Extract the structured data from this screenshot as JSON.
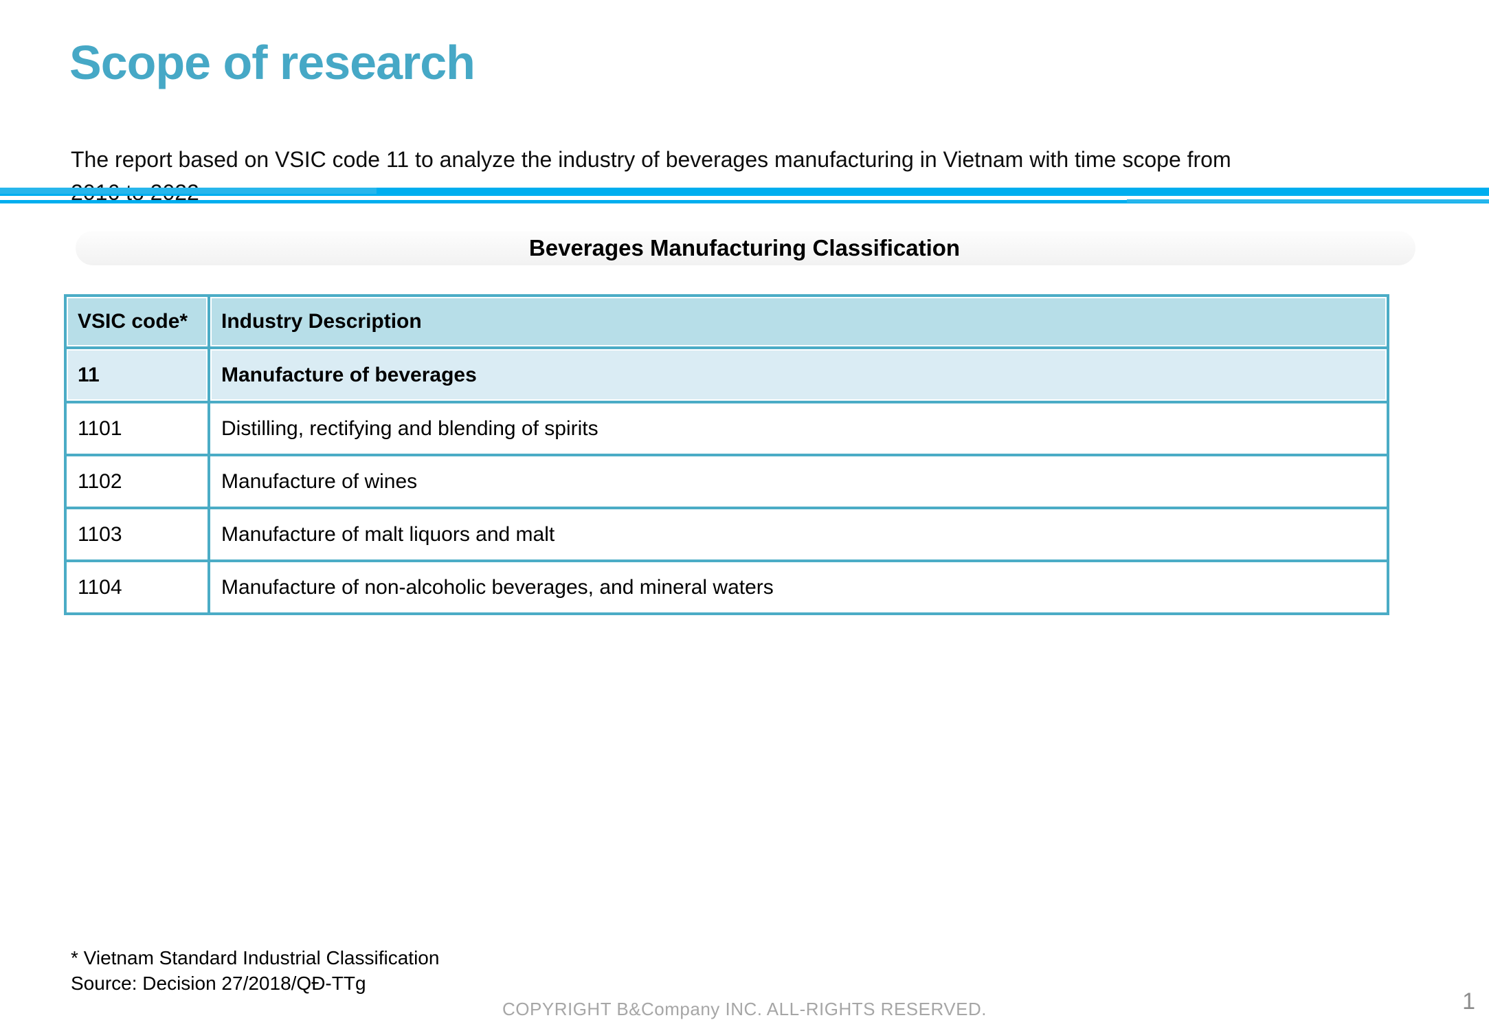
{
  "slide": {
    "title": "Scope of research",
    "intro": "The report based on VSIC code 11 to analyze the industry of beverages manufacturing in Vietnam with time scope from\n2016 to 2022",
    "section_title": "Beverages Manufacturing Classification",
    "table": {
      "columns": [
        "VSIC code*",
        "Industry Description"
      ],
      "rows": [
        {
          "code": "11",
          "description": "Manufacture of beverages"
        },
        {
          "code": "1101",
          "description": "Distilling, rectifying and blending of spirits"
        },
        {
          "code": "1102",
          "description": "Manufacture of wines"
        },
        {
          "code": "1103",
          "description": "Manufacture of malt liquors and malt"
        },
        {
          "code": "1104",
          "description": "Manufacture of non-alcoholic beverages, and mineral waters"
        }
      ]
    },
    "footnotes": [
      "* Vietnam Standard Industrial Classification",
      "Source: Decision 27/2018/QĐ-TTg"
    ],
    "footer": "COPYRIGHT B&Company INC. ALL-RIGHTS RESERVED.",
    "page_number": "1",
    "colors": {
      "title_teal": "#46a8c6",
      "divider_cyan": "#00aeef",
      "table_border": "#4bacc6",
      "header_fill": "#b7dee8",
      "group_row_fill": "#daecf4",
      "footer_gray": "#a6a6a6"
    }
  }
}
